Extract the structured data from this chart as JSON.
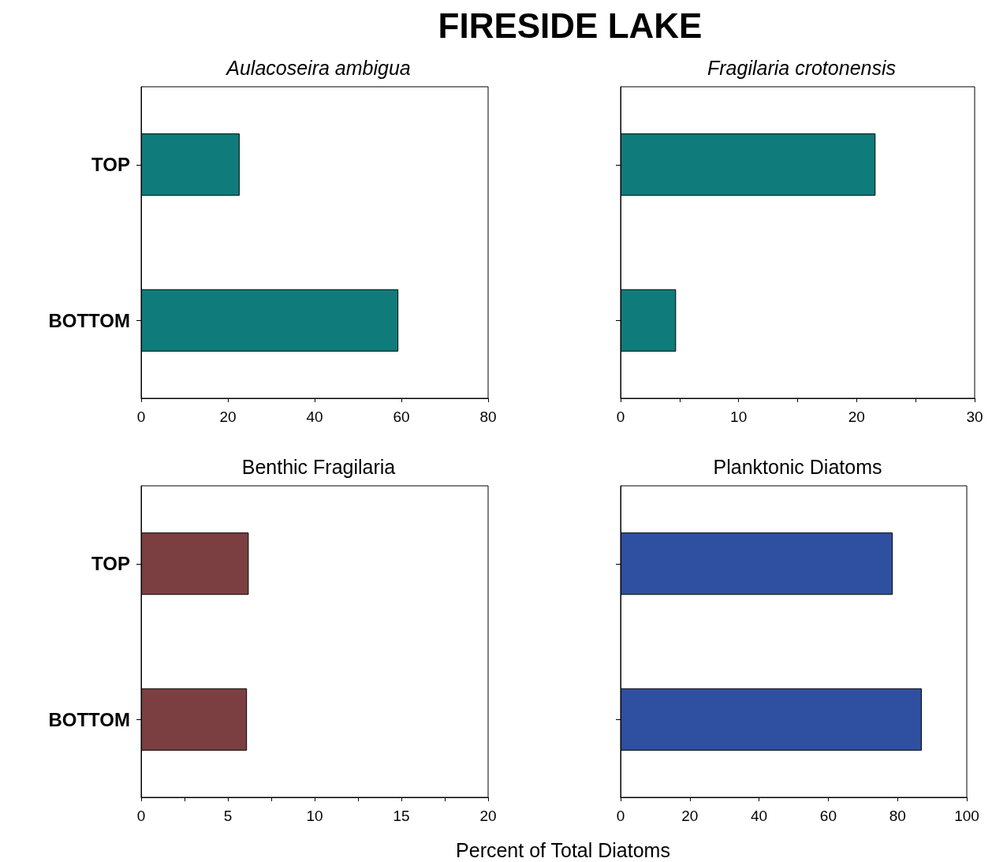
{
  "chart_data": [
    {
      "type": "bar",
      "orientation": "horizontal",
      "title": "Aulacoseira ambigua",
      "annotations": [
        "FIRESIDE LAKE"
      ],
      "categories": [
        "TOP",
        "BOTTOM"
      ],
      "values": [
        22.7,
        59.3
      ],
      "color": "#0f7b7b",
      "xlim": [
        0,
        80
      ],
      "xticks": [
        0,
        20,
        40,
        60,
        80
      ]
    },
    {
      "type": "bar",
      "orientation": "horizontal",
      "title": "Fragilaria crotonensis",
      "categories": [
        null,
        null
      ],
      "values": [
        21.6,
        4.7
      ],
      "color": "#0f7b7b",
      "xlim": [
        0,
        30
      ],
      "xticks": [
        0,
        {
          "value": 5,
          "label": null
        },
        10,
        {
          "value": 15,
          "label": null
        },
        20,
        {
          "value": 25,
          "label": null
        },
        30
      ],
      "tick_labels": "x"
    },
    {
      "type": "bar",
      "orientation": "horizontal",
      "title": "Benthic Fragilaria",
      "categories": [
        "TOP",
        "BOTTOM"
      ],
      "values": [
        6.2,
        6.1
      ],
      "color": "#7b3f42",
      "xlim": [
        0,
        20
      ],
      "xticks": [
        0,
        {
          "value": 2.5,
          "label": null
        },
        5,
        {
          "value": 7.5,
          "label": null
        },
        10,
        {
          "value": 12.5,
          "label": null
        },
        15,
        {
          "value": 17.5,
          "label": null
        },
        20
      ]
    },
    {
      "type": "bar",
      "orientation": "horizontal",
      "title": "Planktonic Diatoms",
      "xlabel": "Percent of Total Diatoms",
      "categories": [
        null,
        null
      ],
      "values": [
        78.6,
        87
      ],
      "color": "#2f4fa0",
      "xlim": [
        0,
        100
      ],
      "xticks": [
        0,
        20,
        40,
        60,
        80,
        100
      ],
      "tick_labels": "x"
    }
  ]
}
